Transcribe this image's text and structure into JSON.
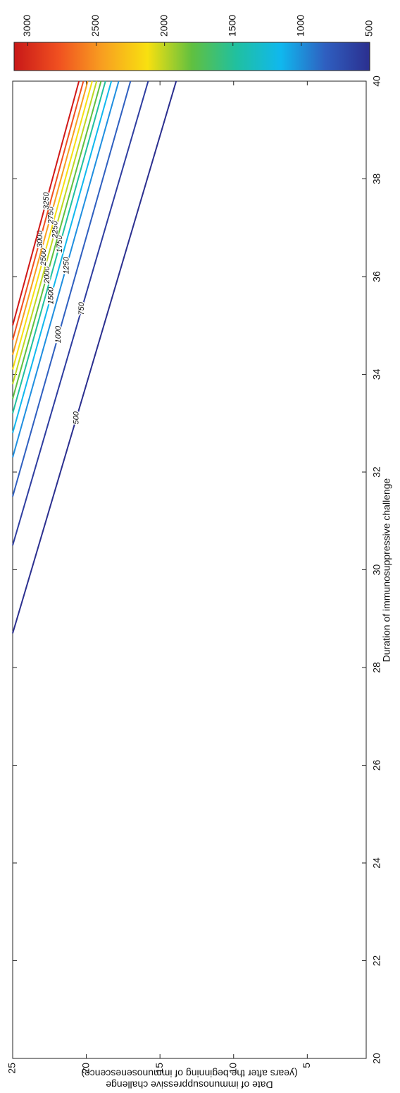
{
  "chart_data": {
    "type": "contour",
    "xlabel": "Duration of immunosuppressive challenge",
    "ylabel": [
      "Date of immunosuppressive challenge",
      "(years after the beginning of immunosenescence)"
    ],
    "xlim": [
      20,
      40
    ],
    "xticks": [
      20,
      22,
      24,
      26,
      28,
      30,
      32,
      34,
      36,
      38,
      40
    ],
    "ylim": [
      1,
      25
    ],
    "yticks": [
      5,
      10,
      15,
      20,
      25
    ],
    "contours": [
      {
        "level": 500,
        "color": "#2b2f8f",
        "x": [
          28.7,
          40
        ],
        "y": [
          25,
          13.9
        ]
      },
      {
        "level": 750,
        "color": "#2e3da0",
        "x": [
          30.5,
          40
        ],
        "y": [
          25,
          15.8
        ]
      },
      {
        "level": 1000,
        "color": "#2f5fc0",
        "x": [
          31.5,
          40
        ],
        "y": [
          25,
          17.0
        ]
      },
      {
        "level": 1250,
        "color": "#1f8fe0",
        "x": [
          32.3,
          40
        ],
        "y": [
          25,
          17.8
        ]
      },
      {
        "level": 1500,
        "color": "#10b8ee",
        "x": [
          32.8,
          40
        ],
        "y": [
          25,
          18.3
        ]
      },
      {
        "level": 1750,
        "color": "#20c0a0",
        "x": [
          33.2,
          40
        ],
        "y": [
          25,
          18.7
        ]
      },
      {
        "level": 2000,
        "color": "#60c040",
        "x": [
          33.5,
          40
        ],
        "y": [
          25,
          19.0
        ]
      },
      {
        "level": 2250,
        "color": "#c0d820",
        "x": [
          33.8,
          40
        ],
        "y": [
          25,
          19.3
        ]
      },
      {
        "level": 2500,
        "color": "#f8e010",
        "x": [
          34.1,
          40
        ],
        "y": [
          25,
          19.6
        ]
      },
      {
        "level": 2750,
        "color": "#f8a020",
        "x": [
          34.4,
          40
        ],
        "y": [
          25,
          19.9
        ]
      },
      {
        "level": 3000,
        "color": "#f05020",
        "x": [
          34.7,
          40
        ],
        "y": [
          25,
          20.2
        ]
      },
      {
        "level": 3250,
        "color": "#d01818",
        "x": [
          35.0,
          40
        ],
        "y": [
          25,
          20.5
        ]
      }
    ],
    "colorbar": {
      "clim": [
        500,
        3100
      ],
      "ticks": [
        500,
        1000,
        1500,
        2000,
        2500,
        3000
      ],
      "colors": [
        "#2b2f8f",
        "#2f5fc0",
        "#10b8ee",
        "#20c0a0",
        "#60c040",
        "#f8e010",
        "#f8a020",
        "#f05020",
        "#c81818"
      ]
    }
  }
}
